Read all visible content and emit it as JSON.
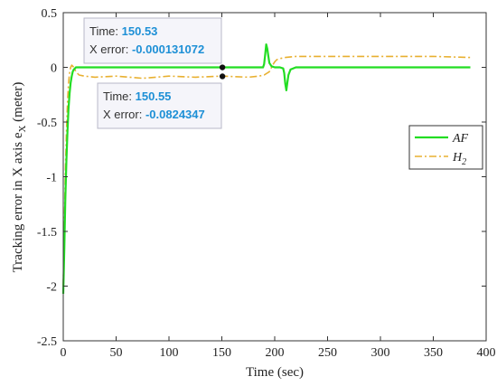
{
  "chart_data": {
    "type": "line",
    "xlabel": "Time (sec)",
    "ylabel": "Tracking error in  X  axis  e",
    "ylabel_sub": "X",
    "ylabel_unit": " (meter)",
    "xlim": [
      0,
      400
    ],
    "ylim": [
      -2.5,
      0.5
    ],
    "x_ticks": [
      0,
      50,
      100,
      150,
      200,
      250,
      300,
      350,
      400
    ],
    "y_ticks": [
      0.5,
      0,
      -0.5,
      -1,
      -1.5,
      -2,
      -2.5
    ],
    "y_tick_labels": [
      "0.5",
      "0",
      "-0.5",
      "-1",
      "-1.5",
      "-2",
      "-2.5"
    ],
    "legend_position": "right",
    "series": [
      {
        "name": "AF",
        "color": "#22dd22",
        "style": "solid",
        "x": [
          0,
          1,
          2,
          3,
          4,
          5,
          6,
          7,
          8,
          9,
          10,
          11,
          12,
          14,
          16,
          20,
          30,
          50,
          100,
          150,
          180,
          189,
          190,
          191,
          192,
          193,
          194,
          195,
          197,
          200,
          205,
          208,
          209,
          210,
          211,
          212,
          213,
          215,
          220,
          250,
          300,
          350,
          385
        ],
        "y": [
          -2.07,
          -1.65,
          -1.2,
          -0.85,
          -0.58,
          -0.38,
          -0.24,
          -0.14,
          -0.08,
          -0.04,
          -0.02,
          -0.01,
          0.0,
          0.0,
          0.0,
          0.0,
          0.0,
          0.0,
          0.0,
          0.0,
          0.0,
          0.0,
          0.03,
          0.12,
          0.21,
          0.17,
          0.1,
          0.04,
          0.01,
          0.0,
          0.0,
          -0.01,
          -0.05,
          -0.15,
          -0.21,
          -0.14,
          -0.07,
          -0.02,
          0.0,
          0.0,
          0.0,
          0.0,
          0.0
        ]
      },
      {
        "name": "H",
        "name_sub": "2",
        "color": "#e8b030",
        "style": "dashdot",
        "x": [
          0,
          1,
          2,
          3,
          4,
          5,
          6,
          7,
          8,
          10,
          12,
          15,
          20,
          30,
          50,
          75,
          100,
          125,
          150,
          175,
          185,
          190,
          195,
          198,
          200,
          202,
          205,
          210,
          220,
          250,
          300,
          350,
          385
        ],
        "y": [
          -2.0,
          -1.45,
          -0.95,
          -0.6,
          -0.32,
          -0.15,
          -0.05,
          0.0,
          0.02,
          0.0,
          -0.04,
          -0.07,
          -0.08,
          -0.09,
          -0.08,
          -0.1,
          -0.08,
          -0.09,
          -0.08,
          -0.09,
          -0.08,
          -0.07,
          -0.04,
          0.02,
          0.05,
          0.07,
          0.08,
          0.09,
          0.1,
          0.1,
          0.1,
          0.1,
          0.09
        ]
      }
    ],
    "annotations": [
      {
        "time_label": "Time: ",
        "time_value": "150.53",
        "err_label": "X error: ",
        "err_value": "-0.000131072",
        "x": 150.53,
        "y": -0.000131072
      },
      {
        "time_label": "Time: ",
        "time_value": "150.55",
        "err_label": "X error: ",
        "err_value": "-0.0824347",
        "x": 150.55,
        "y": -0.0824347
      }
    ]
  }
}
